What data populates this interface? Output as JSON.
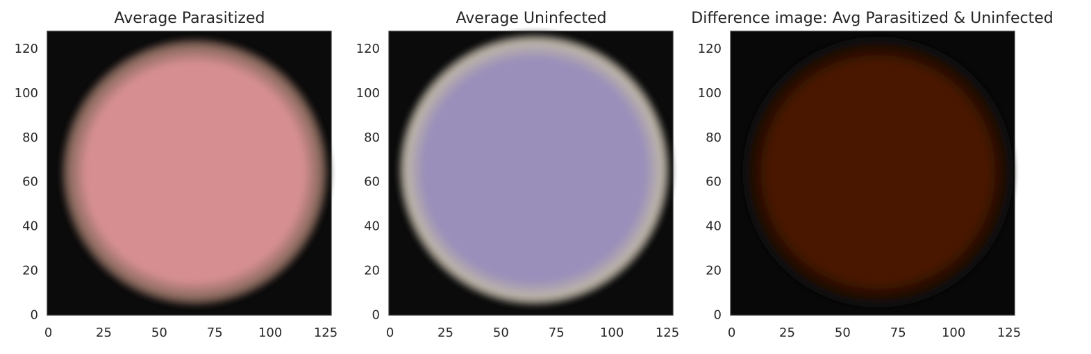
{
  "chart_data": [
    {
      "type": "image",
      "title": "Average Parasitized",
      "xticks": [
        0,
        25,
        50,
        75,
        100,
        125
      ],
      "yticks": [
        0,
        20,
        40,
        60,
        80,
        100,
        120
      ],
      "xlim": [
        -0.5,
        127.5
      ],
      "ylim": [
        127.5,
        -0.5
      ],
      "image": {
        "shape": "disc",
        "center": [
          66,
          64
        ],
        "radius": 61,
        "fill_color": "#d68e91",
        "edge_color": "#8a6a5e",
        "background_color": "#0b0b0b"
      }
    },
    {
      "type": "image",
      "title": "Average Uninfected",
      "xticks": [
        0,
        25,
        50,
        75,
        100,
        125
      ],
      "yticks": [
        0,
        20,
        40,
        60,
        80,
        100,
        120
      ],
      "xlim": [
        -0.5,
        127.5
      ],
      "ylim": [
        127.5,
        -0.5
      ],
      "image": {
        "shape": "disc",
        "center": [
          65,
          65
        ],
        "radius": 62,
        "fill_color": "#9a8fba",
        "edge_color": "#bdb5a8",
        "background_color": "#0b0b0b"
      }
    },
    {
      "type": "image",
      "title": "Difference image: Avg Parasitized & Uninfected",
      "xticks": [
        0,
        25,
        50,
        75,
        100,
        125
      ],
      "yticks": [
        0,
        20,
        40,
        60,
        80,
        100,
        120
      ],
      "xlim": [
        -0.5,
        127.5
      ],
      "ylim": [
        127.5,
        -0.5
      ],
      "image": {
        "shape": "disc",
        "center": [
          66,
          64
        ],
        "radius": 61,
        "fill_color": "#4a1606",
        "edge_color": "#1f0d06",
        "background_color": "#080808"
      }
    }
  ]
}
